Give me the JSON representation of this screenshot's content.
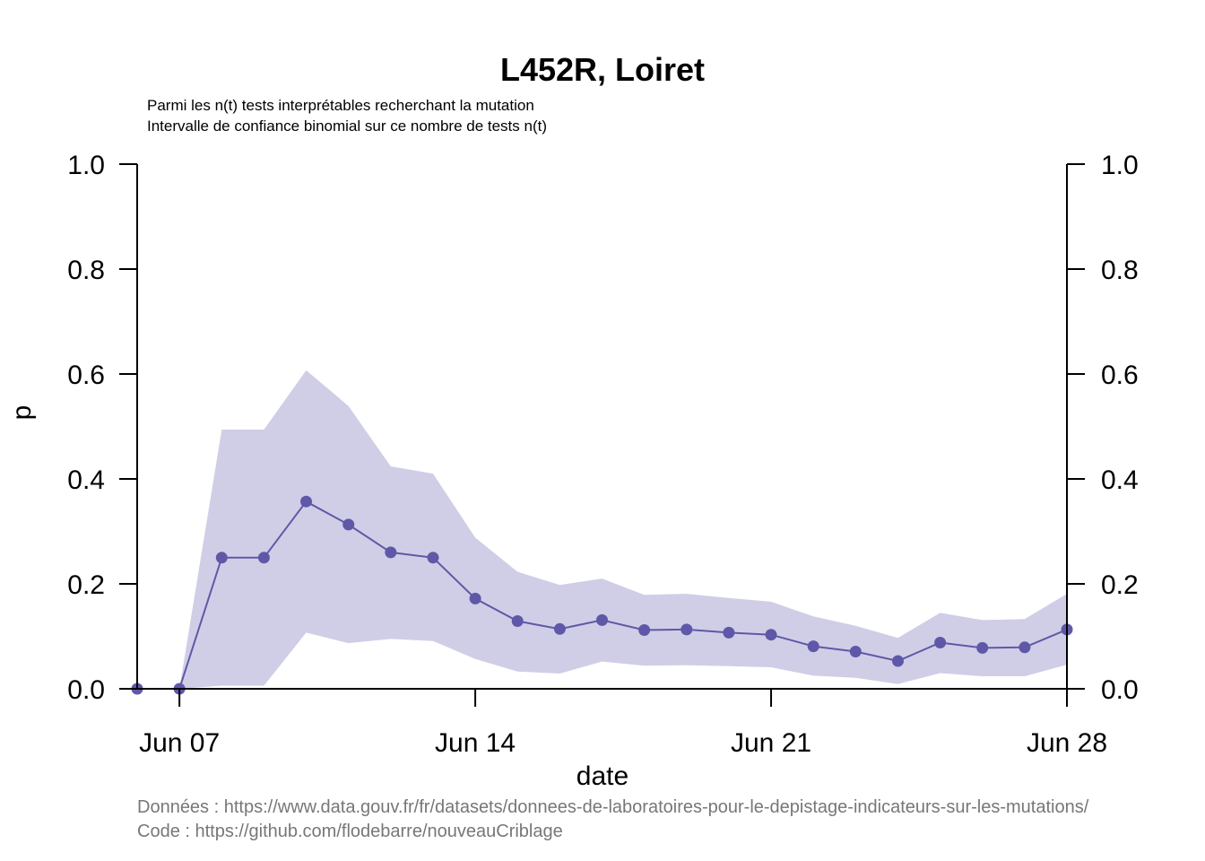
{
  "chart_data": {
    "type": "line",
    "title": "L452R, Loiret",
    "subtitle_lines": [
      "Parmi les n(t) tests interprétables recherchant la mutation",
      "Intervalle de confiance binomial sur ce nombre de tests n(t)"
    ],
    "xlabel": "date",
    "ylabel": "p",
    "xlim": [
      "2021-06-06",
      "2021-06-28"
    ],
    "ylim": [
      0,
      1
    ],
    "x_ticks": [
      {
        "date": "2021-06-07",
        "label": "Jun 07"
      },
      {
        "date": "2021-06-14",
        "label": "Jun 14"
      },
      {
        "date": "2021-06-21",
        "label": "Jun 21"
      },
      {
        "date": "2021-06-28",
        "label": "Jun 28"
      }
    ],
    "y_ticks": [
      "0.0",
      "0.2",
      "0.4",
      "0.6",
      "0.8",
      "1.0"
    ],
    "right_axis": true,
    "grid": false,
    "series": [
      {
        "x": [
          "2021-06-06",
          "2021-06-07",
          "2021-06-08",
          "2021-06-09",
          "2021-06-10",
          "2021-06-11",
          "2021-06-12",
          "2021-06-13",
          "2021-06-14",
          "2021-06-15",
          "2021-06-16",
          "2021-06-17",
          "2021-06-18",
          "2021-06-19",
          "2021-06-20",
          "2021-06-21",
          "2021-06-22",
          "2021-06-23",
          "2021-06-24",
          "2021-06-25",
          "2021-06-26",
          "2021-06-27",
          "2021-06-28"
        ],
        "p": [
          0.0,
          0.0,
          0.25,
          0.25,
          0.357,
          0.313,
          0.26,
          0.25,
          0.172,
          0.129,
          0.114,
          0.131,
          0.112,
          0.113,
          0.107,
          0.103,
          0.081,
          0.071,
          0.053,
          0.088,
          0.078,
          0.079,
          0.113
        ],
        "lower": [
          0.0,
          0.0,
          0.006,
          0.006,
          0.107,
          0.087,
          0.095,
          0.091,
          0.057,
          0.033,
          0.029,
          0.052,
          0.044,
          0.045,
          0.043,
          0.041,
          0.025,
          0.021,
          0.009,
          0.03,
          0.024,
          0.024,
          0.046
        ],
        "upper": [
          0.0,
          0.0,
          0.494,
          0.494,
          0.607,
          0.539,
          0.424,
          0.41,
          0.288,
          0.223,
          0.198,
          0.21,
          0.179,
          0.181,
          0.173,
          0.166,
          0.138,
          0.12,
          0.097,
          0.145,
          0.131,
          0.133,
          0.181
        ]
      }
    ],
    "colors": {
      "line": "#5f58a8",
      "band": "#d0cee6"
    }
  },
  "footer": {
    "data_source": "Données : https://www.data.gouv.fr/fr/datasets/donnees-de-laboratoires-pour-le-depistage-indicateurs-sur-les-mutations/",
    "code_source": "Code : https://github.com/flodebarre/nouveauCriblage"
  }
}
